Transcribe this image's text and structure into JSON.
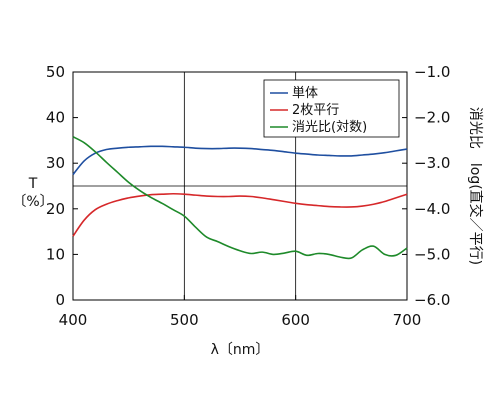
{
  "chart_data": {
    "type": "line",
    "xlabel": "λ〔nm〕",
    "ylabel": "T 〔%〕",
    "y2label": "消光比　log(直交／平行)",
    "xlim": [
      400,
      700
    ],
    "ylim": [
      0,
      50
    ],
    "y2lim": [
      -6.0,
      -1.0
    ],
    "x_ticks": [
      "400",
      "500",
      "600",
      "700"
    ],
    "y_ticks": [
      "0",
      "10",
      "20",
      "30",
      "40",
      "50"
    ],
    "y2_ticks": [
      "−6.0",
      "−5.0",
      "−4.0",
      "−3.0",
      "−2.0",
      "−1.0"
    ],
    "grid": true,
    "legend_position": "top-right",
    "series": [
      {
        "name": "単体",
        "axis": "left",
        "color": "#1f4fa0",
        "x": [
          400,
          410,
          420,
          430,
          440,
          450,
          460,
          470,
          480,
          490,
          500,
          510,
          520,
          530,
          540,
          550,
          560,
          570,
          580,
          590,
          600,
          610,
          620,
          630,
          640,
          650,
          660,
          670,
          680,
          690,
          700
        ],
        "y": [
          27.5,
          30.5,
          32.2,
          33.0,
          33.3,
          33.5,
          33.6,
          33.7,
          33.7,
          33.6,
          33.5,
          33.3,
          33.2,
          33.2,
          33.3,
          33.3,
          33.2,
          33.0,
          32.8,
          32.5,
          32.2,
          32.0,
          31.8,
          31.7,
          31.6,
          31.6,
          31.8,
          32.0,
          32.3,
          32.7,
          33.1
        ]
      },
      {
        "name": "2枚平行",
        "axis": "left",
        "color": "#d6282a",
        "x": [
          400,
          410,
          420,
          430,
          440,
          450,
          460,
          470,
          480,
          490,
          500,
          510,
          520,
          530,
          540,
          550,
          560,
          570,
          580,
          590,
          600,
          610,
          620,
          630,
          640,
          650,
          660,
          670,
          680,
          690,
          700
        ],
        "y": [
          14.0,
          17.5,
          19.8,
          21.0,
          21.8,
          22.4,
          22.8,
          23.1,
          23.2,
          23.3,
          23.2,
          23.0,
          22.8,
          22.7,
          22.7,
          22.8,
          22.7,
          22.4,
          22.0,
          21.6,
          21.2,
          20.9,
          20.7,
          20.5,
          20.4,
          20.4,
          20.6,
          21.0,
          21.6,
          22.4,
          23.2
        ]
      },
      {
        "name": "消光比(対数)",
        "axis": "right",
        "color": "#1e8a2a",
        "x": [
          400,
          410,
          420,
          430,
          440,
          450,
          460,
          470,
          480,
          490,
          500,
          510,
          520,
          530,
          540,
          550,
          560,
          570,
          580,
          590,
          600,
          610,
          620,
          630,
          640,
          650,
          660,
          670,
          680,
          690,
          700
        ],
        "y": [
          -2.42,
          -2.55,
          -2.75,
          -2.98,
          -3.2,
          -3.42,
          -3.6,
          -3.75,
          -3.88,
          -4.02,
          -4.16,
          -4.4,
          -4.62,
          -4.72,
          -4.83,
          -4.92,
          -4.98,
          -4.95,
          -5.0,
          -4.97,
          -4.93,
          -5.02,
          -4.98,
          -5.0,
          -5.06,
          -5.08,
          -4.9,
          -4.82,
          -5.0,
          -5.02,
          -4.86
        ]
      }
    ]
  }
}
